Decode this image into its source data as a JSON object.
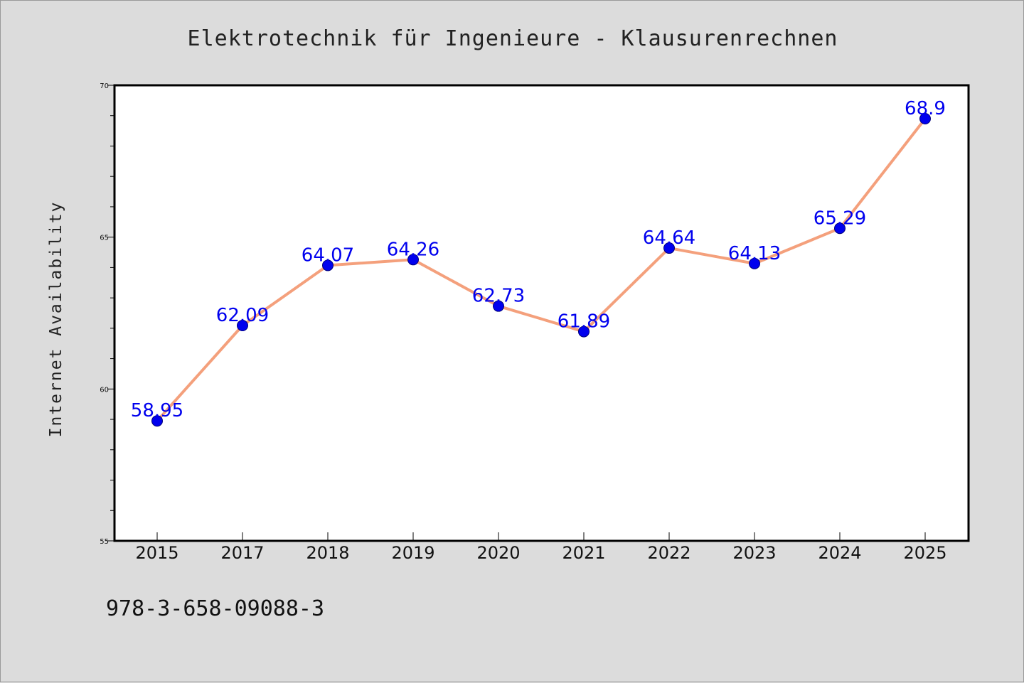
{
  "chart_data": {
    "type": "line",
    "title": "Elektrotechnik für Ingenieure - Klausurenrechnen",
    "xlabel": "",
    "ylabel": "Internet Availability",
    "categories": [
      "2015",
      "2017",
      "2018",
      "2019",
      "2020",
      "2021",
      "2022",
      "2023",
      "2024",
      "2025"
    ],
    "values": [
      58.95,
      62.09,
      64.07,
      64.26,
      62.73,
      61.89,
      64.64,
      64.13,
      65.29,
      68.9
    ],
    "data_labels": [
      "58.95",
      "62.09",
      "64.07",
      "64.26",
      "62.73",
      "61.89",
      "64.64",
      "64.13",
      "65.29",
      "68.9"
    ],
    "ylim": [
      55,
      70
    ],
    "yticks": [
      55,
      60,
      65,
      70
    ],
    "grid": false,
    "legend": "none",
    "line_color": "#f4a07c",
    "marker_color": "#0000ee",
    "label_color": "#0000ee"
  },
  "footer": {
    "isbn": "978-3-658-09088-3"
  }
}
